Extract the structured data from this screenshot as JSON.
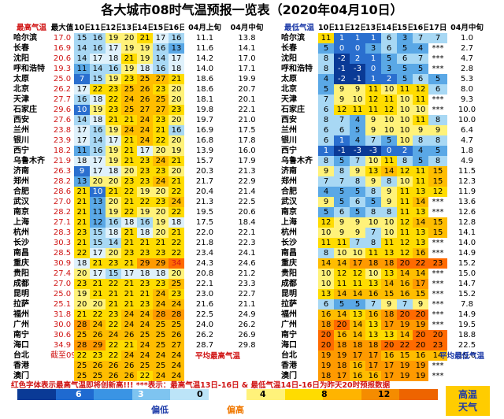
{
  "title": "各大城市08时气温预报一览表（2020年04月10日）",
  "chart_data": {
    "type": "table",
    "max_headers": [
      "最高气温",
      "最大值",
      "10日",
      "11日",
      "12日",
      "13日",
      "14日",
      "15日",
      "16日",
      "04月上旬",
      "04月中旬"
    ],
    "min_headers": [
      "最低气温",
      "10日",
      "11日",
      "12日",
      "13日",
      "14日",
      "15日",
      "16日",
      "17日",
      "04月中旬"
    ],
    "cities": [
      "哈尔滨",
      "长春",
      "沈阳",
      "呼和浩特",
      "太原",
      "北京",
      "天津",
      "石家庄",
      "西安",
      "兰州",
      "银川",
      "西宁",
      "乌鲁木齐",
      "济南",
      "郑州",
      "合肥",
      "武汉",
      "南京",
      "上海",
      "杭州",
      "长沙",
      "南昌",
      "重庆",
      "贵阳",
      "成都",
      "昆明",
      "拉萨",
      "福州",
      "广州",
      "南宁",
      "海口",
      "台北",
      "香港",
      "澳门"
    ],
    "max_values": [
      [
        "17.0",
        "15",
        "16",
        "19",
        "20",
        "21",
        "17",
        "16",
        "11.1",
        "13.8"
      ],
      [
        "16.9",
        "14",
        "16",
        "17",
        "19",
        "19",
        "16",
        "13",
        "11.6",
        "14.1"
      ],
      [
        "20.6",
        "14",
        "17",
        "18",
        "21",
        "19",
        "14",
        "17",
        "14.2",
        "17.0"
      ],
      [
        "19.3",
        "11",
        "14",
        "16",
        "19",
        "18",
        "16",
        "18",
        "14.0",
        "17.1"
      ],
      [
        "25.0",
        "7",
        "15",
        "19",
        "23",
        "25",
        "27",
        "21",
        "18.6",
        "19.9"
      ],
      [
        "26.2",
        "17",
        "22",
        "23",
        "25",
        "26",
        "23",
        "20",
        "18.6",
        "20.7"
      ],
      [
        "27.7",
        "16",
        "18",
        "22",
        "24",
        "26",
        "25",
        "20",
        "18.1",
        "20.1"
      ],
      [
        "29.6",
        "10",
        "19",
        "23",
        "25",
        "27",
        "27",
        "23",
        "19.8",
        "22.1"
      ],
      [
        "27.6",
        "14",
        "18",
        "21",
        "21",
        "24",
        "23",
        "20",
        "19.7",
        "21.0"
      ],
      [
        "23.8",
        "17",
        "16",
        "19",
        "24",
        "24",
        "21",
        "16",
        "16.9",
        "17.5"
      ],
      [
        "23.9",
        "17",
        "14",
        "17",
        "21",
        "24",
        "22",
        "20",
        "16.8",
        "17.8"
      ],
      [
        "18.2",
        "11",
        "16",
        "19",
        "21",
        "17",
        "20",
        "19",
        "13.9",
        "16.0"
      ],
      [
        "21.9",
        "18",
        "17",
        "19",
        "21",
        "23",
        "24",
        "21",
        "15.7",
        "17.9"
      ],
      [
        "26.3",
        "9",
        "17",
        "18",
        "20",
        "23",
        "23",
        "20",
        "20.3",
        "21.3"
      ],
      [
        "28.2",
        "13",
        "20",
        "20",
        "23",
        "23",
        "24",
        "21",
        "21.7",
        "22.9"
      ],
      [
        "28.6",
        "21",
        "10",
        "21",
        "22",
        "19",
        "20",
        "22",
        "20.4",
        "21.4"
      ],
      [
        "27.0",
        "21",
        "13",
        "20",
        "21",
        "22",
        "23",
        "24",
        "21.3",
        "22.5"
      ],
      [
        "28.2",
        "21",
        "11",
        "19",
        "22",
        "19",
        "20",
        "22",
        "19.5",
        "20.6"
      ],
      [
        "27.1",
        "21",
        "12",
        "16",
        "18",
        "16",
        "19",
        "18",
        "17.5",
        "18.4"
      ],
      [
        "28.3",
        "23",
        "15",
        "18",
        "21",
        "18",
        "20",
        "21",
        "22.0",
        "22.1"
      ],
      [
        "30.3",
        "21",
        "15",
        "14",
        "21",
        "21",
        "21",
        "22",
        "21.8",
        "22.3"
      ],
      [
        "28.5",
        "22",
        "17",
        "20",
        "23",
        "23",
        "23",
        "22",
        "23.4",
        "24.1"
      ],
      [
        "30.9",
        "18",
        "21",
        "23",
        "21",
        "29",
        "29",
        "34",
        "24.3",
        "24.6"
      ],
      [
        "27.4",
        "20",
        "17",
        "15",
        "17",
        "18",
        "18",
        "20",
        "20.8",
        "21.2"
      ],
      [
        "27.0",
        "23",
        "21",
        "22",
        "21",
        "23",
        "23",
        "25",
        "22.1",
        "23.3"
      ],
      [
        "25.0",
        "19",
        "21",
        "21",
        "21",
        "21",
        "24",
        "23",
        "23.0",
        "22.7"
      ],
      [
        "25.1",
        "20",
        "20",
        "21",
        "21",
        "23",
        "24",
        "24",
        "21.6",
        "21.1"
      ],
      [
        "31.8",
        "21",
        "22",
        "23",
        "24",
        "24",
        "28",
        "28",
        "22.5",
        "24.9"
      ],
      [
        "30.0",
        "28",
        "24",
        "22",
        "24",
        "24",
        "25",
        "25",
        "24.0",
        "26.2"
      ],
      [
        "30.6",
        "25",
        "26",
        "24",
        "26",
        "25",
        "25",
        "26",
        "26.2",
        "26.9"
      ],
      [
        "34.9",
        "28",
        "29",
        "22",
        "21",
        "24",
        "25",
        "27",
        "28.7",
        "29.8"
      ],
      [
        "截至09日",
        "22",
        "23",
        "22",
        "24",
        "24",
        "24",
        "24",
        "",
        ""
      ],
      [
        "",
        "25",
        "26",
        "26",
        "26",
        "25",
        "25",
        "24",
        "",
        ""
      ],
      [
        "",
        "25",
        "25",
        "26",
        "26",
        "22",
        "24",
        "24",
        "",
        ""
      ]
    ],
    "min_values": [
      [
        "11",
        "1",
        "1",
        "1",
        "6",
        "3",
        "7",
        "7",
        "1.0"
      ],
      [
        "5",
        "0",
        "0",
        "3",
        "6",
        "5",
        "4",
        "***",
        "2.7"
      ],
      [
        "8",
        "-2",
        "2",
        "1",
        "5",
        "6",
        "7",
        "***",
        "4.7"
      ],
      [
        "8",
        "-1",
        "-3",
        "0",
        "3",
        "5",
        "5",
        "***",
        "2.8"
      ],
      [
        "4",
        "-2",
        "-1",
        "1",
        "2",
        "5",
        "6",
        "5",
        "5.3"
      ],
      [
        "5",
        "9",
        "9",
        "11",
        "10",
        "11",
        "12",
        "6",
        "8.0"
      ],
      [
        "7",
        "9",
        "10",
        "12",
        "11",
        "10",
        "11",
        "***",
        "9.3"
      ],
      [
        "6",
        "12",
        "11",
        "11",
        "12",
        "10",
        "10",
        "***",
        "10.0"
      ],
      [
        "8",
        "7",
        "4",
        "9",
        "10",
        "10",
        "11",
        "8",
        "10.0"
      ],
      [
        "6",
        "6",
        "5",
        "9",
        "10",
        "10",
        "9",
        "9",
        "6.4"
      ],
      [
        "6",
        "1",
        "4",
        "7",
        "5",
        "10",
        "8",
        "8",
        "4.7"
      ],
      [
        "1",
        "-1",
        "-3",
        "-3",
        "0",
        "2",
        "4",
        "5",
        "1.8"
      ],
      [
        "8",
        "5",
        "7",
        "10",
        "11",
        "8",
        "5",
        "8",
        "4.9"
      ],
      [
        "9",
        "8",
        "9",
        "13",
        "14",
        "12",
        "11",
        "15",
        "11.5"
      ],
      [
        "7",
        "7",
        "8",
        "9",
        "8",
        "10",
        "11",
        "15",
        "12.3"
      ],
      [
        "4",
        "5",
        "5",
        "8",
        "9",
        "11",
        "13",
        "12",
        "11.9"
      ],
      [
        "9",
        "5",
        "6",
        "5",
        "9",
        "11",
        "14",
        "***",
        "13.6"
      ],
      [
        "5",
        "6",
        "5",
        "8",
        "8",
        "11",
        "13",
        "***",
        "12.6"
      ],
      [
        "12",
        "9",
        "9",
        "10",
        "10",
        "12",
        "14",
        "15",
        "12.8"
      ],
      [
        "10",
        "9",
        "9",
        "7",
        "10",
        "11",
        "13",
        "15",
        "14.1"
      ],
      [
        "11",
        "11",
        "7",
        "8",
        "11",
        "12",
        "13",
        "***",
        "14.0"
      ],
      [
        "8",
        "10",
        "10",
        "11",
        "13",
        "12",
        "16",
        "***",
        "14.9"
      ],
      [
        "14",
        "14",
        "17",
        "18",
        "18",
        "20",
        "22",
        "23",
        "15.2"
      ],
      [
        "10",
        "12",
        "12",
        "10",
        "13",
        "14",
        "14",
        "***",
        "15.0"
      ],
      [
        "10",
        "11",
        "11",
        "13",
        "14",
        "16",
        "17",
        "***",
        "14.7"
      ],
      [
        "13",
        "14",
        "14",
        "16",
        "15",
        "16",
        "15",
        "***",
        "15.2"
      ],
      [
        "6",
        "5",
        "5",
        "7",
        "9",
        "7",
        "9",
        "***",
        "7.8"
      ],
      [
        "16",
        "14",
        "13",
        "16",
        "18",
        "20",
        "20",
        "***",
        "14.9"
      ],
      [
        "18",
        "20",
        "14",
        "13",
        "17",
        "19",
        "19",
        "***",
        "19.5"
      ],
      [
        "20",
        "16",
        "14",
        "13",
        "13",
        "14",
        "20",
        "20",
        "18.8"
      ],
      [
        "20",
        "18",
        "18",
        "18",
        "20",
        "22",
        "20",
        "23",
        "22.5"
      ],
      [
        "19",
        "19",
        "17",
        "17",
        "16",
        "15",
        "16",
        "14",
        "19.0"
      ],
      [
        "19",
        "18",
        "16",
        "17",
        "17",
        "19",
        "19",
        "***",
        ""
      ],
      [
        "18",
        "17",
        "16",
        "16",
        "17",
        "19",
        "19",
        "***",
        ""
      ]
    ]
  },
  "notes": {
    "avg_high": "平均最高气温",
    "avg_low": "平均最低气温",
    "footer": "红色字体表示最高气温即将创新高!!! ***表示：最高气温13日-16日 & 最低气温14日-16日为昨天20时预报数据"
  },
  "legend": {
    "colors": [
      "#0a3a96",
      "#1f6ad0",
      "#3a94e4",
      "#7ec4f0",
      "#bce4f8",
      "#ffffff",
      "#fff27a",
      "#ffdc00",
      "#ffb400",
      "#f58c00",
      "#ee6400"
    ],
    "labels": [
      "6",
      "3",
      "0",
      "4",
      "8",
      "12"
    ],
    "cool": "偏低",
    "warm": "偏高",
    "hot_line1": "高温",
    "hot_line2": "天气"
  }
}
